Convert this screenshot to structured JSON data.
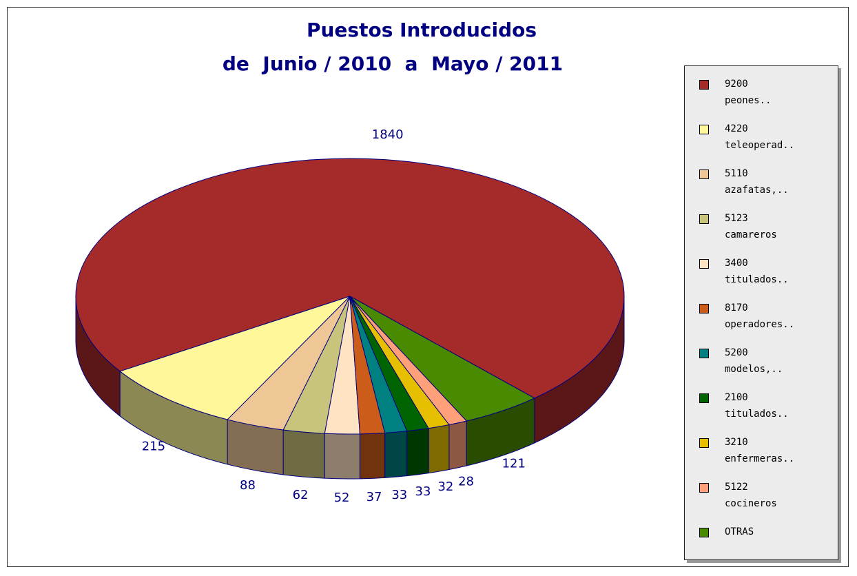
{
  "chart_data": {
    "type": "pie3d",
    "title": "Puestos Introducidos",
    "subtitle": "de  Junio / 2010  a  Mayo / 2011",
    "categories": [
      "9200 peones..",
      "4220 teleoperad..",
      "5110 azafatas,..",
      "5123 camareros",
      "3400 titulados..",
      "8170 operadores..",
      "5200 modelos,..",
      "2100 titulados..",
      "3210 enfermeras..",
      "5122 cocineros",
      "OTRAS"
    ],
    "values": [
      1840,
      215,
      88,
      62,
      52,
      37,
      33,
      33,
      32,
      28,
      121
    ],
    "colors": [
      "#a52a2a",
      "#fff799",
      "#efc796",
      "#c9c47c",
      "#ffe4c4",
      "#cc5c1a",
      "#008080",
      "#006400",
      "#e6c000",
      "#ffa07a",
      "#4a8a00"
    ],
    "legend": "right"
  }
}
